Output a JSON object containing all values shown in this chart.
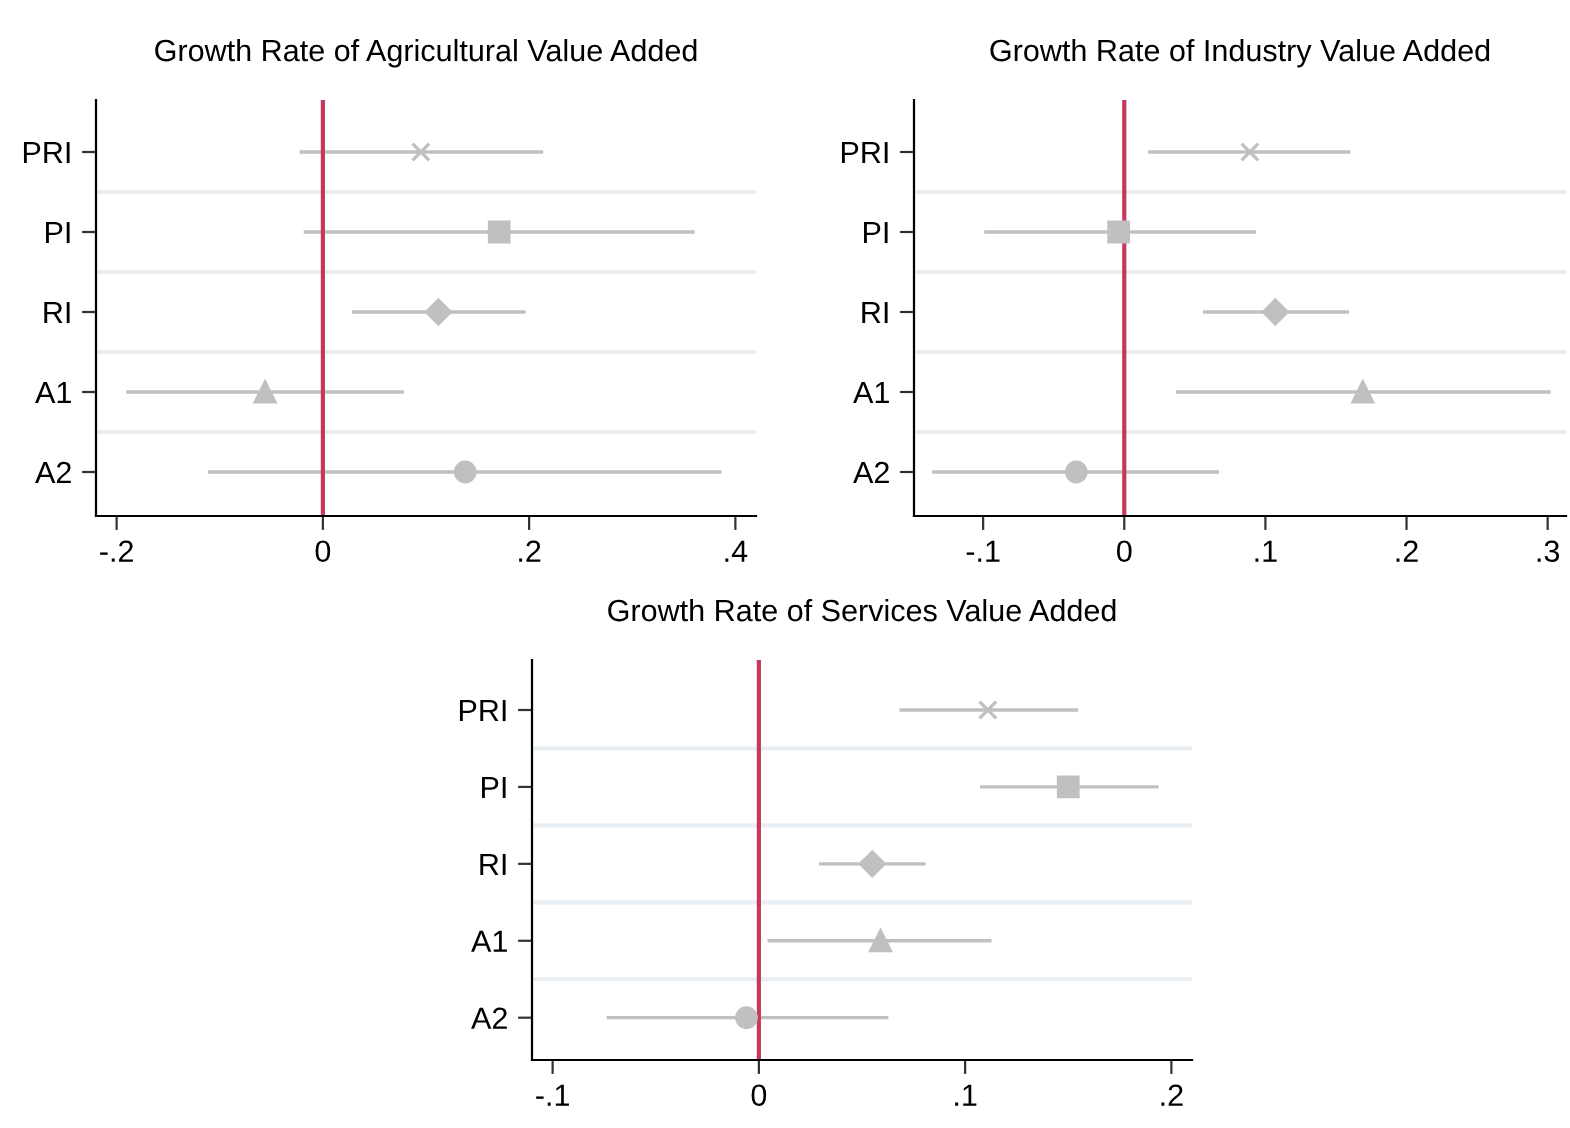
{
  "chart_data": [
    {
      "type": "scatter",
      "title": "Growth Rate of Agricultural Value Added",
      "categories": [
        "PRI",
        "PI",
        "RI",
        "A1",
        "A2"
      ],
      "orientation": "horizontal",
      "xlim": [
        -0.22,
        0.42
      ],
      "xticks": [
        {
          "value": -0.2,
          "label": "-.2"
        },
        0,
        {
          "value": 0.2,
          "label": ".2"
        },
        {
          "value": 0.4,
          "label": ".4"
        }
      ],
      "grid": "y",
      "ref_lines": [
        {
          "axis": "x",
          "value": 0,
          "color": "#c8385a"
        }
      ],
      "series": [
        {
          "color": "#c0c0c0",
          "marker": "cross",
          "values": [
            0.095,
            null,
            null,
            null,
            null
          ],
          "errors": [
            [
              -0.021,
              0.212
            ],
            null,
            null,
            null,
            null
          ]
        },
        {
          "color": "#c0c0c0",
          "marker": "square",
          "values": [
            null,
            0.171,
            null,
            null,
            null
          ],
          "errors": [
            null,
            [
              -0.017,
              0.359
            ],
            null,
            null,
            null
          ]
        },
        {
          "color": "#c0c0c0",
          "marker": "diamond",
          "values": [
            null,
            null,
            0.112,
            null,
            null
          ],
          "errors": [
            null,
            null,
            [
              0.03,
              0.195
            ],
            null,
            null
          ]
        },
        {
          "color": "#c0c0c0",
          "marker": "triangle",
          "values": [
            null,
            null,
            null,
            -0.056,
            null
          ],
          "errors": [
            null,
            null,
            null,
            [
              -0.189,
              0.077
            ],
            null
          ]
        },
        {
          "color": "#c0c0c0",
          "marker": "circle",
          "values": [
            null,
            null,
            null,
            null,
            0.138
          ],
          "errors": [
            null,
            null,
            null,
            null,
            [
              -0.11,
              0.385
            ]
          ]
        }
      ]
    },
    {
      "type": "scatter",
      "title": "Growth Rate of Industry Value Added",
      "categories": [
        "PRI",
        "PI",
        "RI",
        "A1",
        "A2"
      ],
      "orientation": "horizontal",
      "xlim": [
        -0.149,
        0.313
      ],
      "xticks": [
        {
          "value": -0.1,
          "label": "-.1"
        },
        0,
        {
          "value": 0.1,
          "label": ".1"
        },
        {
          "value": 0.2,
          "label": ".2"
        },
        {
          "value": 0.3,
          "label": ".3"
        }
      ],
      "grid": "y",
      "ref_lines": [
        {
          "axis": "x",
          "value": 0,
          "color": "#c8385a"
        }
      ],
      "series": [
        {
          "color": "#c0c0c0",
          "marker": "cross",
          "values": [
            0.089,
            null,
            null,
            null,
            null
          ],
          "errors": [
            [
              0.018,
              0.159
            ],
            null,
            null,
            null,
            null
          ]
        },
        {
          "color": "#c0c0c0",
          "marker": "square",
          "values": [
            null,
            -0.004,
            null,
            null,
            null
          ],
          "errors": [
            null,
            [
              -0.098,
              0.092
            ],
            null,
            null,
            null
          ]
        },
        {
          "color": "#c0c0c0",
          "marker": "diamond",
          "values": [
            null,
            null,
            0.107,
            null,
            null
          ],
          "errors": [
            null,
            null,
            [
              0.057,
              0.158
            ],
            null,
            null
          ]
        },
        {
          "color": "#c0c0c0",
          "marker": "triangle",
          "values": [
            null,
            null,
            null,
            0.169,
            null
          ],
          "errors": [
            null,
            null,
            null,
            [
              0.038,
              0.301
            ],
            null
          ]
        },
        {
          "color": "#c0c0c0",
          "marker": "circle",
          "values": [
            null,
            null,
            null,
            null,
            -0.034
          ],
          "errors": [
            null,
            null,
            null,
            null,
            [
              -0.135,
              0.066
            ]
          ]
        }
      ]
    },
    {
      "type": "scatter",
      "title": "Growth Rate of Services Value Added",
      "categories": [
        "PRI",
        "PI",
        "RI",
        "A1",
        "A2"
      ],
      "orientation": "horizontal",
      "xlim": [
        -0.11,
        0.21
      ],
      "xticks": [
        {
          "value": -0.1,
          "label": "-.1"
        },
        0,
        {
          "value": 0.1,
          "label": ".1"
        },
        {
          "value": 0.2,
          "label": ".2"
        }
      ],
      "grid": "y",
      "ref_lines": [
        {
          "axis": "x",
          "value": 0,
          "color": "#c8385a"
        }
      ],
      "series": [
        {
          "color": "#c0c0c0",
          "marker": "cross",
          "values": [
            0.111,
            null,
            null,
            null,
            null
          ],
          "errors": [
            [
              0.069,
              0.154
            ],
            null,
            null,
            null,
            null
          ]
        },
        {
          "color": "#c0c0c0",
          "marker": "square",
          "values": [
            null,
            0.15,
            null,
            null,
            null
          ],
          "errors": [
            null,
            [
              0.108,
              0.193
            ],
            null,
            null,
            null
          ]
        },
        {
          "color": "#c0c0c0",
          "marker": "diamond",
          "values": [
            null,
            null,
            0.055,
            null,
            null
          ],
          "errors": [
            null,
            null,
            [
              0.03,
              0.08
            ],
            null,
            null
          ]
        },
        {
          "color": "#c0c0c0",
          "marker": "triangle",
          "values": [
            null,
            null,
            null,
            0.059,
            null
          ],
          "errors": [
            null,
            null,
            null,
            [
              0.005,
              0.112
            ],
            null
          ]
        },
        {
          "color": "#c0c0c0",
          "marker": "circle",
          "values": [
            null,
            null,
            null,
            null,
            -0.006
          ],
          "errors": [
            null,
            null,
            null,
            null,
            [
              -0.073,
              0.062
            ]
          ]
        }
      ]
    }
  ]
}
